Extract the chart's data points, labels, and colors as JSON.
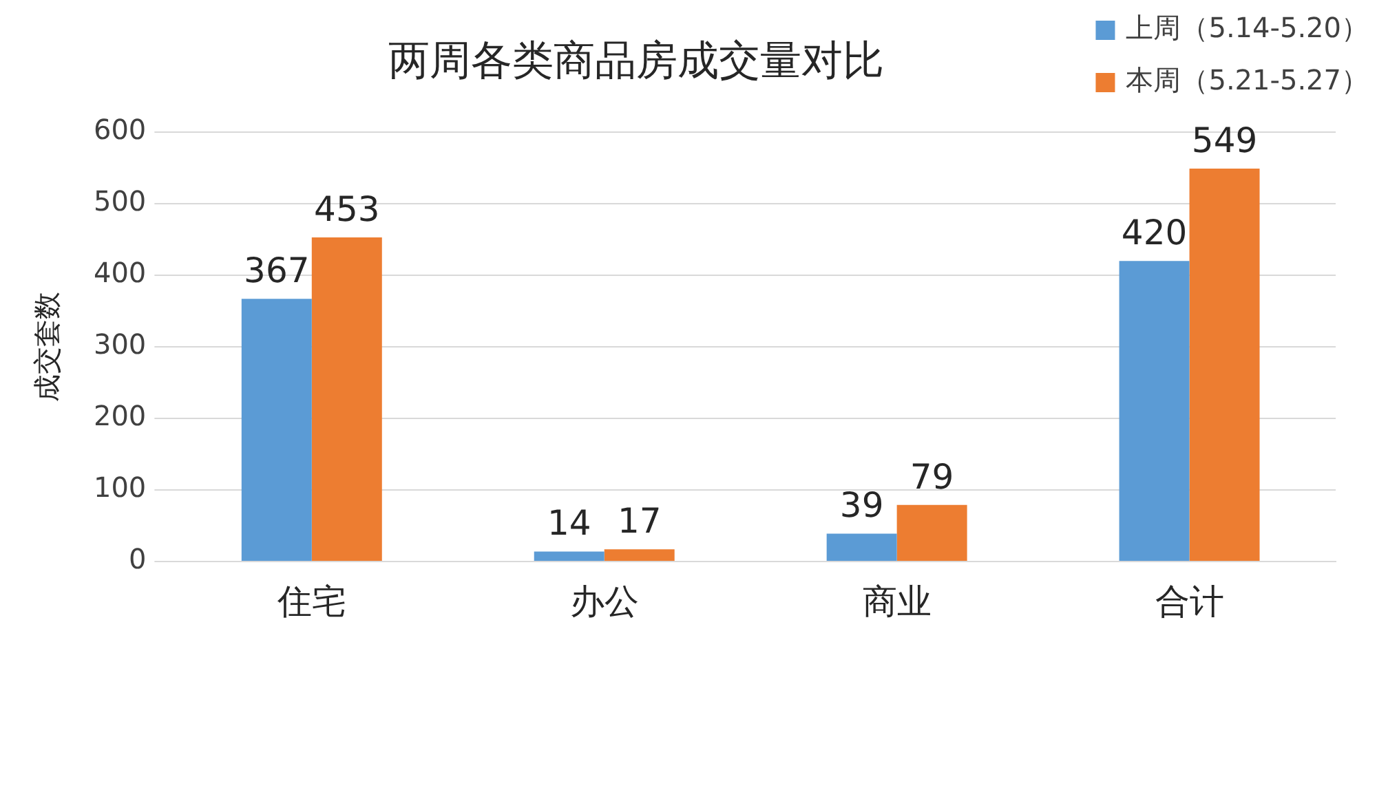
{
  "chart_data": {
    "type": "bar",
    "title": "两周各类商品房成交量对比",
    "ylabel": "成交套数",
    "categories": [
      "住宅",
      "办公",
      "商业",
      "合计"
    ],
    "series": [
      {
        "name": "上周（5.14-5.20）",
        "color": "#5b9bd5",
        "values": [
          367,
          14,
          39,
          420
        ]
      },
      {
        "name": "本周（5.21-5.27）",
        "color": "#ed7d31",
        "values": [
          453,
          17,
          79,
          549
        ]
      }
    ],
    "ylim": [
      0,
      600
    ],
    "yticks": [
      0,
      100,
      200,
      300,
      400,
      500,
      600
    ],
    "grid": "y",
    "legend": "top right",
    "data_labels": true
  }
}
